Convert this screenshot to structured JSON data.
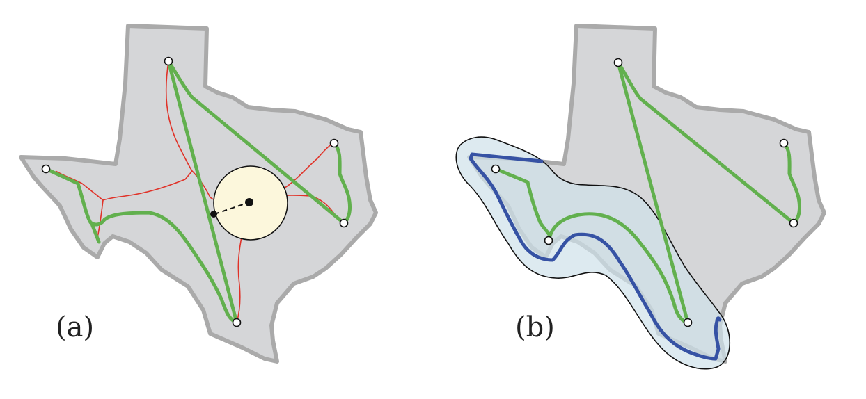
{
  "panels": [
    {
      "label": "(a)"
    },
    {
      "label": "(b)"
    }
  ],
  "colors": {
    "background": "#ffffff",
    "region_fill": "#d5d6d8",
    "region_stroke": "#aaaaaa",
    "path_green": "#62b04e",
    "skeleton_red": "#e03228",
    "circle_fill": "#fcf7dc",
    "buffer_fill": "#cfe1ea",
    "boundary_blue": "#3652a4",
    "vertex_fill": "#ffffff",
    "vertex_stroke": "#111111"
  }
}
